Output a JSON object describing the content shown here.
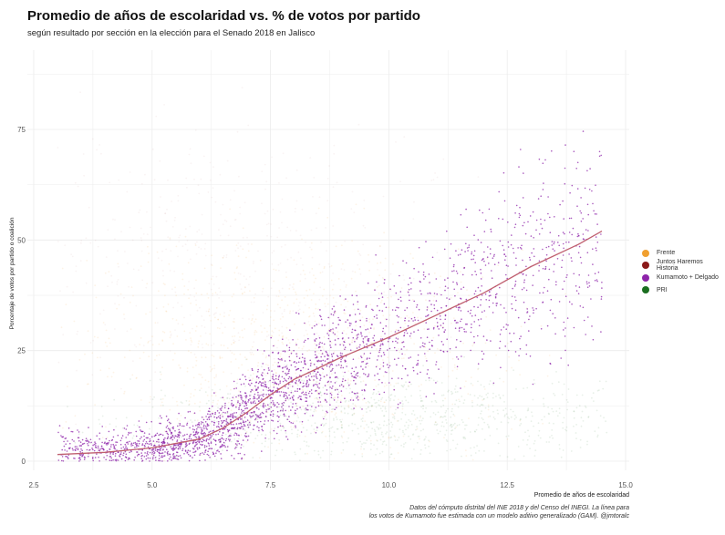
{
  "chart_data": {
    "type": "scatter",
    "title": "Promedio de años de escolaridad vs. % de votos por partido",
    "subtitle": "según resultado por sección en la elección para el Senado 2018 en Jalisco",
    "xlabel": "Promedio de años de escolaridad",
    "ylabel": "Porcentaje de votos por partido o coalición",
    "caption": [
      "Datos del cómputo distrital del INE 2018 y del Censo del INEGI. La línea para",
      "los votos de Kumamoto fue estimada con un modelo aditivo generalizado (GAM). @jmtoralc"
    ],
    "xlim": [
      2.5,
      15
    ],
    "ylim": [
      0,
      90
    ],
    "xticks": [
      "2.5",
      "5.0",
      "7.5",
      "10.0",
      "12.5",
      "15.0"
    ],
    "xtick_values": [
      2.5,
      5,
      7.5,
      10,
      12.5,
      15
    ],
    "yticks": [
      "0",
      "25",
      "50",
      "75"
    ],
    "ytick_values": [
      0,
      25,
      50,
      75
    ],
    "grid": true,
    "legend_position": "right",
    "series": [
      {
        "name": "Frente",
        "color": "#f0a030",
        "center": [
          8,
          25
        ],
        "spread": [
          2.2,
          12
        ],
        "n": 900,
        "alpha": 0.12
      },
      {
        "name": "Juntos Haremos Historia",
        "color": "#8b1a1a",
        "center": [
          6.5,
          45
        ],
        "spread": [
          2,
          15
        ],
        "n": 500,
        "alpha": 0.05
      },
      {
        "name": "Kumamoto + Delgado",
        "color": "#8e24aa",
        "n": 2600,
        "alpha": 0.75
      },
      {
        "name": "PRI",
        "color": "#1b6e20",
        "center": [
          10,
          10
        ],
        "spread": [
          2.8,
          5
        ],
        "n": 900,
        "alpha": 0.1
      }
    ],
    "trend": {
      "name": "GAM Kumamoto + Delgado",
      "color": "#c06070",
      "x": [
        3,
        4,
        5,
        6,
        6.5,
        7,
        7.5,
        8,
        8.5,
        9,
        10,
        11,
        12,
        13,
        14,
        14.5
      ],
      "y": [
        1.5,
        2,
        3,
        5,
        7.5,
        11,
        15,
        18.5,
        21,
        23.5,
        28,
        33,
        38,
        44,
        49,
        52
      ]
    }
  }
}
